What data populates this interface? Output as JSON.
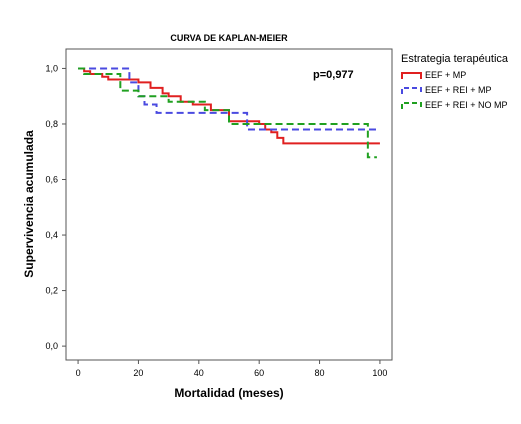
{
  "chart_data": {
    "type": "line",
    "title": "CURVA DE KAPLAN-MEIER",
    "xlabel": "Mortalidad (meses)",
    "ylabel": "Supervivencia acumulada",
    "xlim": [
      -4,
      104
    ],
    "ylim": [
      -0.05,
      1.07
    ],
    "xticks": [
      "0",
      "20",
      "40",
      "60",
      "80",
      "100"
    ],
    "xtick_values": [
      0,
      20,
      40,
      60,
      80,
      100
    ],
    "yticks": [
      "0,0",
      "0,2",
      "0,4",
      "0,6",
      "0,8",
      "1,0"
    ],
    "ytick_values": [
      0,
      0.2,
      0.4,
      0.6,
      0.8,
      1.0
    ],
    "annotation": "p=0,977",
    "legend_title": "Estrategia terapéutica",
    "legend_position": "right",
    "grid": false,
    "series": [
      {
        "name": "EEF + MP",
        "color": "#e02020",
        "style": "solid",
        "x": [
          0,
          2,
          4,
          8,
          10,
          14,
          20,
          24,
          28,
          30,
          34,
          38,
          44,
          50,
          54,
          60,
          62,
          64,
          66,
          68,
          100
        ],
        "y": [
          1.0,
          0.99,
          0.98,
          0.97,
          0.96,
          0.96,
          0.95,
          0.93,
          0.91,
          0.9,
          0.88,
          0.87,
          0.85,
          0.81,
          0.81,
          0.8,
          0.78,
          0.77,
          0.75,
          0.73,
          0.73
        ]
      },
      {
        "name": "EEF + REI + MP",
        "color": "#4a4ae0",
        "style": "dashed",
        "x": [
          0,
          17,
          20,
          22,
          26,
          56,
          100
        ],
        "y": [
          1.0,
          0.95,
          0.9,
          0.87,
          0.84,
          0.78,
          0.78
        ]
      },
      {
        "name": "EEF + REI + NO MP",
        "color": "#20a020",
        "style": "dashed",
        "x": [
          0,
          2,
          14,
          20,
          30,
          42,
          50,
          96,
          99
        ],
        "y": [
          1.0,
          0.98,
          0.92,
          0.9,
          0.88,
          0.85,
          0.8,
          0.68,
          0.68
        ]
      }
    ]
  }
}
